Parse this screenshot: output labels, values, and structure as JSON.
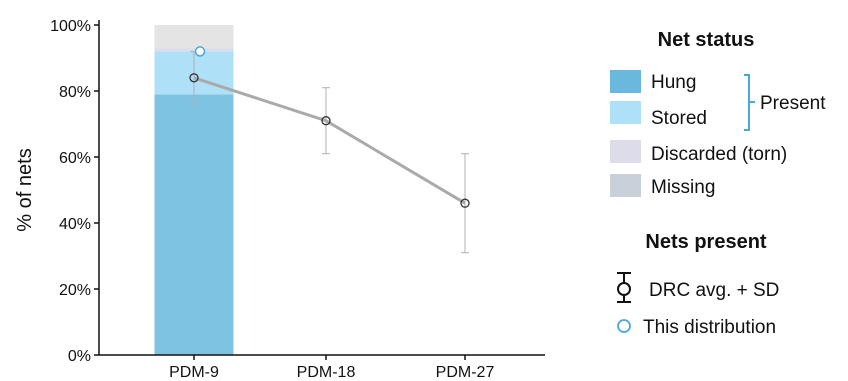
{
  "chart_data": {
    "type": "bar",
    "categories": [
      "PDM-9",
      "PDM-18",
      "PDM-27"
    ],
    "ylabel": "% of nets",
    "ylim": [
      0,
      100
    ],
    "yticks": [
      "0%",
      "20%",
      "40%",
      "60%",
      "80%",
      "100%"
    ],
    "stacked_bar": {
      "category": "PDM-9",
      "segments": [
        {
          "name": "Hung",
          "value": 79,
          "color": "#7ec4e2"
        },
        {
          "name": "Stored",
          "value": 13,
          "color": "#aee0f7"
        },
        {
          "name": "Discarded (torn)",
          "value": 1,
          "color": "#dcdcea"
        },
        {
          "name": "Missing",
          "value": 7,
          "color": "#e4e4e4"
        }
      ]
    },
    "drc_series": {
      "name": "DRC avg. + SD",
      "points": [
        {
          "category": "PDM-9",
          "mean": 84,
          "sd_low": 76,
          "sd_high": 92
        },
        {
          "category": "PDM-18",
          "mean": 71,
          "sd_low": 61,
          "sd_high": 81
        },
        {
          "category": "PDM-27",
          "mean": 46,
          "sd_low": 31,
          "sd_high": 61
        }
      ],
      "color": "#aaaaaa"
    },
    "this_distribution": {
      "name": "This distribution",
      "category": "PDM-9",
      "value": 92,
      "color": "#4aa8d6"
    }
  },
  "legend": {
    "net_status_title": "Net status",
    "status_items": [
      {
        "label": "Hung",
        "color": "#6bb8de"
      },
      {
        "label": "Stored",
        "color": "#aee0f7"
      },
      {
        "label": "Discarded (torn)",
        "color": "#dcdcea"
      },
      {
        "label": "Missing",
        "color": "#c8d0da"
      }
    ],
    "present_label": "Present",
    "present_bracket_color": "#4aa8d6",
    "nets_present_title": "Nets present",
    "drc_label": "DRC avg. + SD",
    "distribution_label": "This distribution"
  }
}
